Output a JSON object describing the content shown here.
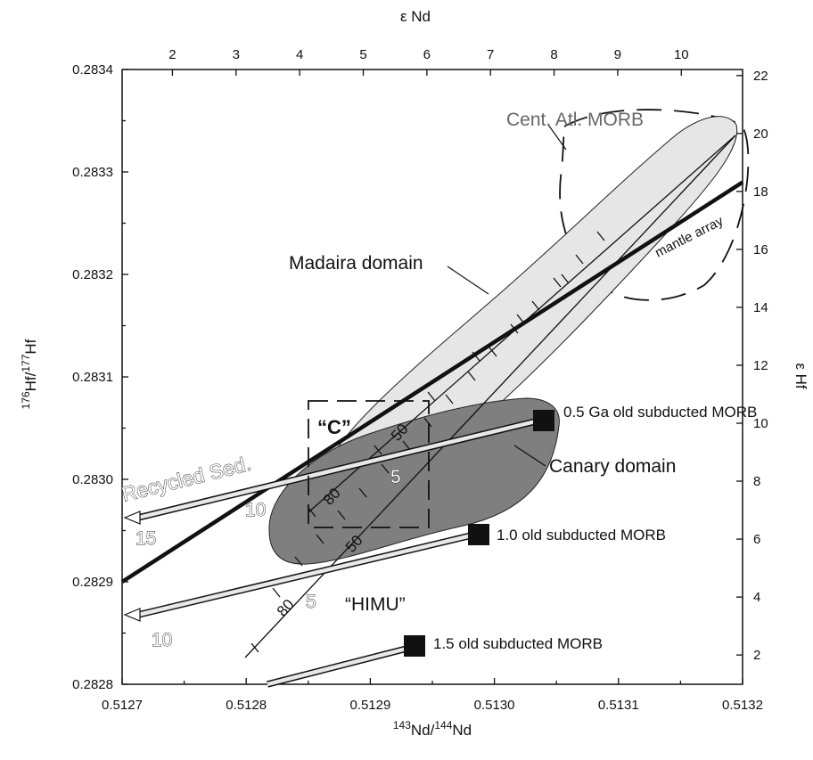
{
  "chart_data": {
    "type": "scatter",
    "xlabel": {
      "sup": "143",
      "a": "Nd/",
      "sup2": "144",
      "b": "Nd"
    },
    "ylabel": {
      "sup": "176",
      "a": "Hf/",
      "sup2": "177",
      "b": "Hf"
    },
    "top_axis_label": "ε Nd",
    "right_axis_label": "ε Hf",
    "xlim": [
      0.5127,
      0.5132
    ],
    "ylim": [
      0.2828,
      0.2834
    ],
    "x_ticks": [
      "0.5127",
      "0.5128",
      "0.5129",
      "0.5130",
      "0.5131",
      "0.5132"
    ],
    "y_ticks": [
      "0.2828",
      "0.2829",
      "0.2830",
      "0.2831",
      "0.2832",
      "0.2833",
      "0.2834"
    ],
    "top_ticks": [
      "2",
      "3",
      "4",
      "5",
      "6",
      "7",
      "8",
      "9",
      "10"
    ],
    "right_ticks": [
      "2",
      "4",
      "6",
      "8",
      "10",
      "12",
      "14",
      "16",
      "18",
      "20",
      "22"
    ],
    "regions": {
      "central_atlantic_morb": "Cent. Atl. MORB",
      "madeira": "Madaira domain",
      "canary": "Canary domain",
      "c_component": "“C”",
      "himu": "“HIMU”",
      "mantle_array": "mantle array"
    },
    "mantle_array": [
      [
        0.5127,
        0.2829
      ],
      [
        0.5132,
        0.28329
      ]
    ],
    "subducted_morb": [
      {
        "label": "0.5 Ga old subducted MORB",
        "end": [
          0.51304,
          0.283058
        ]
      },
      {
        "label": "1.0 old subducted MORB",
        "end": [
          0.51299,
          0.282945
        ]
      },
      {
        "label": "1.5 old subducted MORB",
        "end": [
          0.51294,
          0.282835
        ]
      }
    ],
    "recycled_sediment_label": "Recycled Sed.",
    "curve_tick_labels": {
      "sed_15": "15",
      "sed_10a": "10",
      "sed_5a": "5",
      "sed_10b": "10",
      "sed_5b": "5",
      "mix_50a": "50",
      "mix_80a": "80",
      "mix_50b": "50",
      "mix_80b": "80"
    }
  }
}
